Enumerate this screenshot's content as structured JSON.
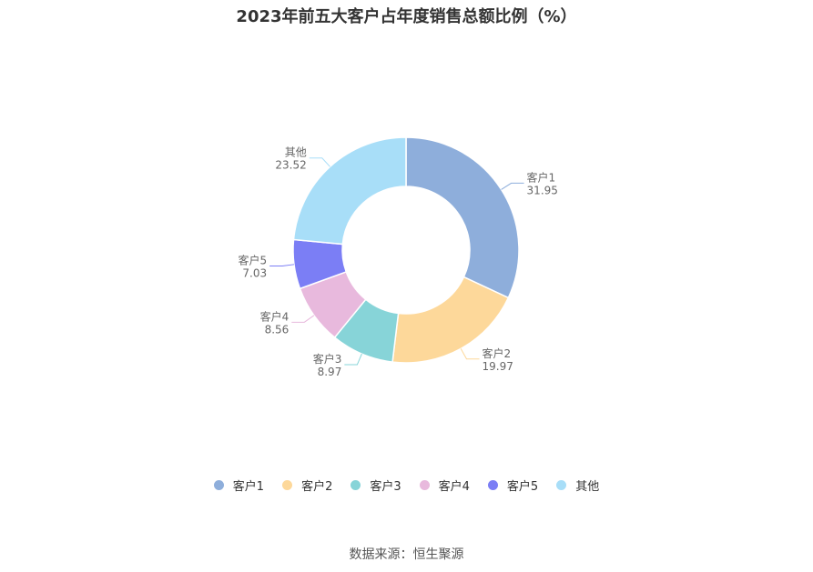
{
  "title": "2023年前五大客户占年度销售总额比例（%）",
  "source": "数据来源：恒生聚源",
  "chart_data": {
    "type": "pie",
    "donut": true,
    "categories": [
      "客户1",
      "客户2",
      "客户3",
      "客户4",
      "客户5",
      "其他"
    ],
    "values": [
      31.95,
      19.97,
      8.97,
      8.56,
      7.03,
      23.52
    ],
    "value_labels": [
      "31.95",
      "19.97",
      "8.97",
      "8.56",
      "7.03",
      "23.52"
    ],
    "colors": [
      "#8eaedb",
      "#fdd89a",
      "#87d4d8",
      "#e8b9dd",
      "#7b7ef5",
      "#a8def8"
    ],
    "legend_position": "bottom"
  }
}
